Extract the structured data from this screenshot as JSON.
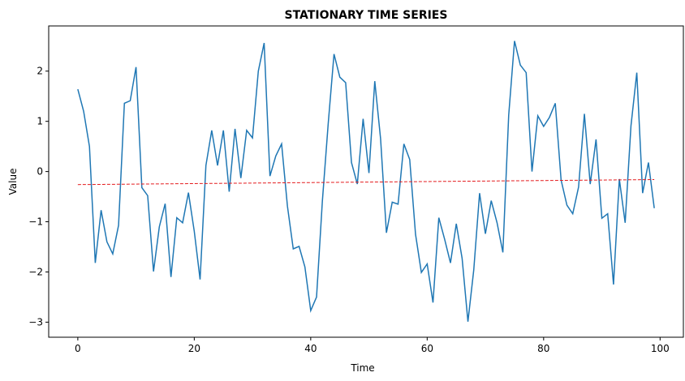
{
  "chart_data": {
    "type": "line",
    "title": "STATIONARY TIME SERIES",
    "xlabel": "Time",
    "ylabel": "Value",
    "xlim": [
      -5,
      104
    ],
    "ylim": [
      -3.3,
      2.9
    ],
    "xticks": [
      0,
      20,
      40,
      60,
      80,
      100
    ],
    "yticks": [
      -3,
      -2,
      -1,
      0,
      1,
      2
    ],
    "grid": false,
    "colors": {
      "series": "#1f77b4",
      "trend": "#e41a1c"
    },
    "series": [
      {
        "values": [
          1.64,
          1.2,
          0.5,
          -1.82,
          -0.77,
          -1.4,
          -1.64,
          -1.07,
          1.36,
          1.41,
          2.08,
          -0.32,
          -0.48,
          -1.99,
          -1.1,
          -0.64,
          -2.1,
          -0.92,
          -1.02,
          -0.42,
          -1.19,
          -2.15,
          0.12,
          0.82,
          0.12,
          0.82,
          -0.4,
          0.85,
          -0.13,
          0.82,
          0.67,
          2.0,
          2.56,
          -0.09,
          0.31,
          0.55,
          -0.69,
          -1.54,
          -1.49,
          -1.9,
          -2.77,
          -2.5,
          -0.59,
          0.95,
          2.34,
          1.88,
          1.77,
          0.18,
          -0.25,
          1.05,
          -0.03,
          1.8,
          0.65,
          -1.22,
          -0.61,
          -0.65,
          0.55,
          0.24,
          -1.25,
          -2.01,
          -1.84,
          -2.61,
          -0.92,
          -1.35,
          -1.82,
          -1.04,
          -1.73,
          -2.99,
          -1.96,
          -0.43,
          -1.24,
          -0.58,
          -1.02,
          -1.61,
          1.12,
          2.6,
          2.12,
          1.97,
          0.0,
          1.11,
          0.9,
          1.08,
          1.36,
          -0.17,
          -0.67,
          -0.84,
          -0.31,
          1.15,
          -0.25,
          0.64,
          -0.93,
          -0.84,
          -2.25,
          -0.15,
          -1.02,
          0.91,
          1.97,
          -0.43,
          0.18,
          -0.73
        ]
      },
      {
        "style": "dashed",
        "x": [
          0,
          99
        ],
        "values": [
          -0.26,
          -0.16
        ]
      }
    ]
  }
}
